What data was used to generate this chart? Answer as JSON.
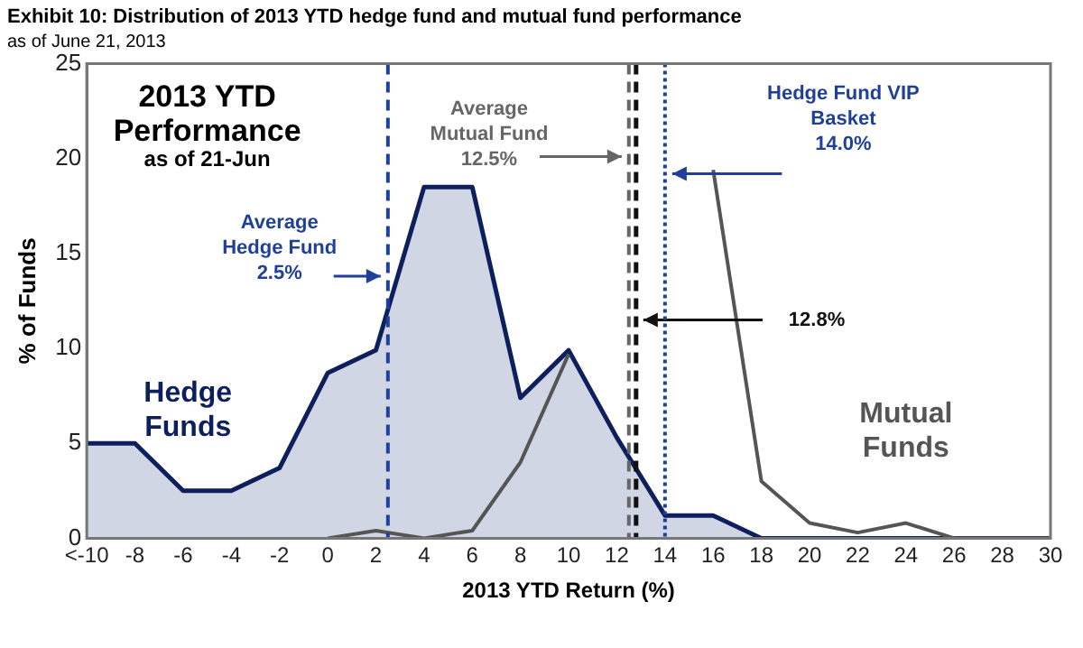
{
  "chart_data": {
    "type": "area",
    "title": "Exhibit 10: Distribution of 2013 YTD hedge fund and mutual fund performance",
    "subtitle": "as of June 21, 2013",
    "xlabel": "2013 YTD Return (%)",
    "ylabel": "% of Funds",
    "x": [
      -10,
      -8,
      -6,
      -4,
      -2,
      0,
      2,
      4,
      6,
      8,
      10,
      12,
      14,
      16,
      18,
      20,
      22,
      24,
      26,
      28,
      30
    ],
    "series": [
      {
        "name": "Hedge Funds",
        "color": "#0d1f5c",
        "values": [
          5,
          5,
          2.5,
          2.5,
          3.7,
          8.7,
          9.9,
          18.5,
          18.5,
          7.4,
          9.9,
          5.3,
          1.2,
          1.2,
          0,
          0,
          0,
          0,
          0,
          0,
          0
        ]
      },
      {
        "name": "Mutual Funds",
        "type": "line",
        "color": "#555555",
        "values": [
          null,
          null,
          null,
          null,
          null,
          0,
          0.4,
          0,
          0.4,
          4,
          9.7,
          null,
          null,
          19.4,
          3,
          0.8,
          0.3,
          0.8,
          0,
          0,
          0
        ]
      }
    ],
    "xlim": [
      -10,
      30
    ],
    "xticks": [
      {
        "value": -10,
        "label": "<-10"
      },
      -8,
      -6,
      -4,
      -2,
      0,
      2,
      4,
      6,
      8,
      10,
      12,
      14,
      16,
      18,
      20,
      22,
      24,
      26,
      28,
      30
    ],
    "ylim": [
      0,
      25
    ],
    "yticks": [
      0,
      5,
      10,
      15,
      20,
      25
    ],
    "ref_lines": [
      {
        "axis": "x",
        "value": 2.5,
        "label": "Average Hedge Fund 2.5%",
        "color": "#1f3f99",
        "line_style": "dashed"
      },
      {
        "axis": "x",
        "value": 12.5,
        "label": "Average Mutual Fund 12.5%",
        "color": "#666666",
        "line_style": "dashed"
      },
      {
        "axis": "x",
        "value": 12.8,
        "label": "12.8%",
        "color": "#111111",
        "line_style": "dashed"
      },
      {
        "axis": "x",
        "value": 14.0,
        "label": "Hedge Fund VIP Basket 14.0%",
        "color": "#1f3f99",
        "line_style": "dotted"
      }
    ],
    "annotations": [
      "2013 YTD Performance",
      "as of 21-Jun"
    ],
    "grid": false,
    "legend": false,
    "marker": "none",
    "line_style": "solid"
  }
}
